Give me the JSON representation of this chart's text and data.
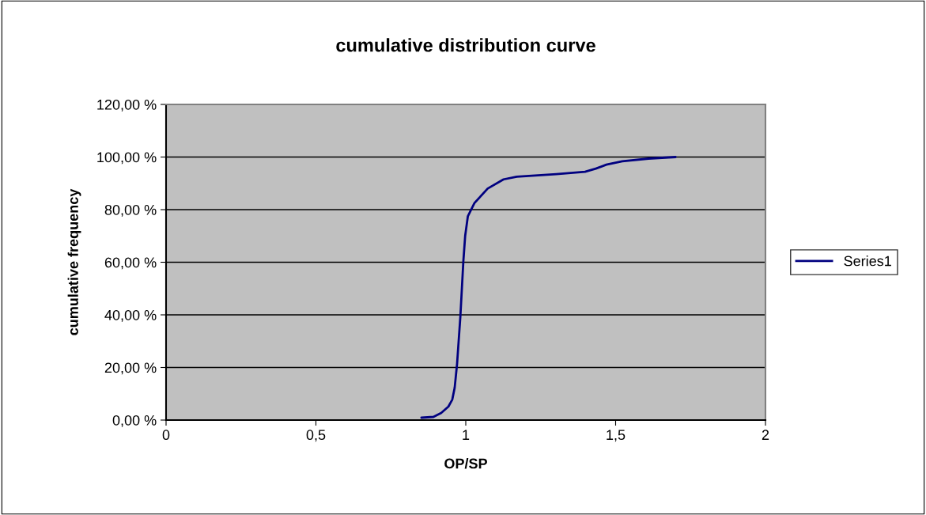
{
  "chart_data": {
    "type": "line",
    "title": "cumulative distribution curve",
    "xlabel": "OP/SP",
    "ylabel": "cumulative frequency",
    "xlim": [
      0,
      2
    ],
    "xticks": [
      0,
      {
        "value": 0.5,
        "label": "0,5"
      },
      1,
      {
        "value": 1.5,
        "label": "1,5"
      },
      2
    ],
    "ylim": [
      0,
      120
    ],
    "yticks": [
      {
        "value": 0,
        "label": "0,00 %"
      },
      {
        "value": 20,
        "label": "20,00 %"
      },
      {
        "value": 40,
        "label": "40,00 %"
      },
      {
        "value": 60,
        "label": "60,00 %"
      },
      {
        "value": 80,
        "label": "80,00 %"
      },
      {
        "value": 100,
        "label": "100,00 %"
      },
      {
        "value": 120,
        "label": "120,00 %"
      }
    ],
    "grid": "y",
    "legend": "right",
    "marker": "none",
    "line_style": "solid",
    "series": [
      {
        "name": "Series1",
        "color": "#000080",
        "x": [
          0.852,
          0.892,
          0.918,
          0.942,
          0.955,
          0.963,
          0.971,
          0.982,
          0.992,
          0.998,
          1.007,
          1.029,
          1.073,
          1.126,
          1.17,
          1.302,
          1.398,
          1.434,
          1.469,
          1.522,
          1.61,
          1.7
        ],
        "values": [
          0.9,
          1.2,
          2.7,
          5.1,
          7.8,
          12.3,
          21.4,
          39.4,
          60.5,
          70.0,
          77.5,
          82.5,
          88.0,
          91.5,
          92.5,
          93.5,
          94.4,
          95.6,
          97.1,
          98.4,
          99.4,
          100
        ]
      }
    ]
  }
}
